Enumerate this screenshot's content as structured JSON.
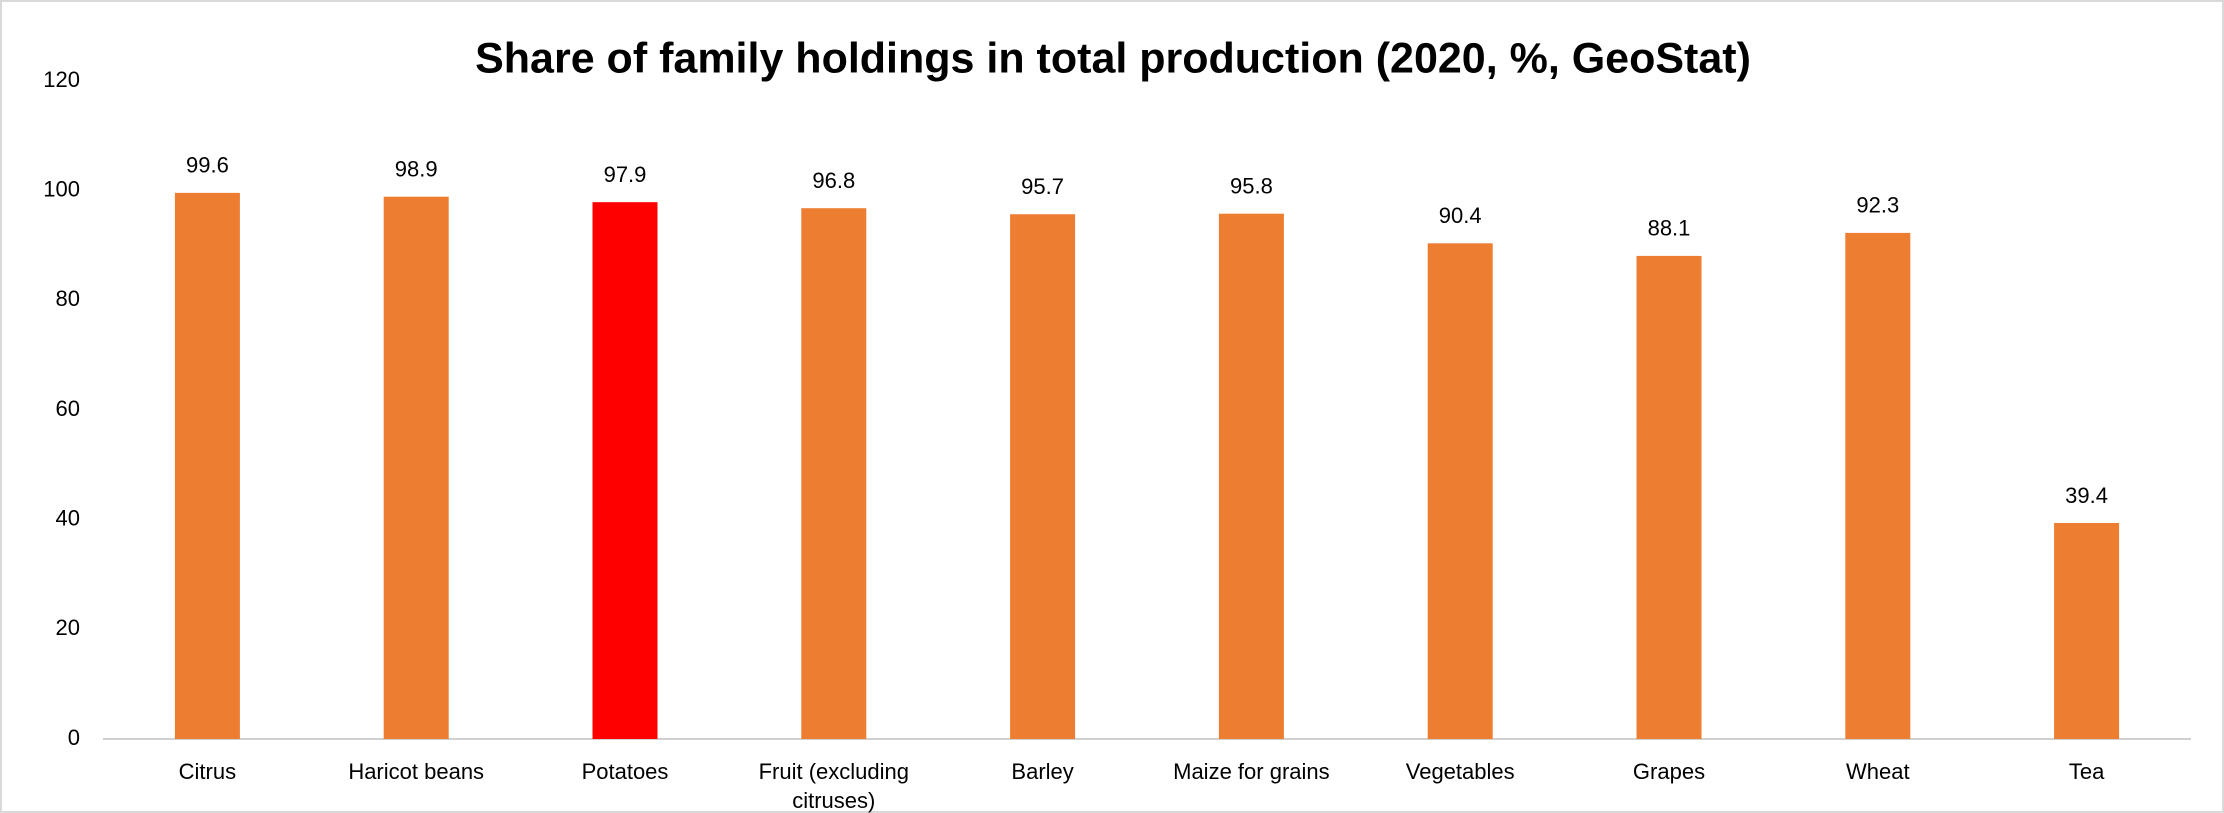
{
  "chart_data": {
    "type": "bar",
    "title": "Share of family holdings in total production (2020, %, GeoStat)",
    "categories": [
      "Citrus",
      "Haricot beans",
      "Potatoes",
      "Fruit (excluding citruses)",
      "Barley",
      "Maize for grains",
      "Vegetables",
      "Grapes",
      "Wheat",
      "Tea"
    ],
    "values": [
      99.6,
      98.9,
      97.9,
      96.8,
      95.7,
      95.8,
      90.4,
      88.1,
      92.3,
      39.4
    ],
    "colors": [
      "#ED7D31",
      "#ED7D31",
      "#FF0000",
      "#ED7D31",
      "#ED7D31",
      "#ED7D31",
      "#ED7D31",
      "#ED7D31",
      "#ED7D31",
      "#ED7D31"
    ],
    "ylim": [
      0,
      120
    ],
    "yticks": [
      0,
      20,
      40,
      60,
      80,
      100,
      120
    ],
    "grid": false
  }
}
